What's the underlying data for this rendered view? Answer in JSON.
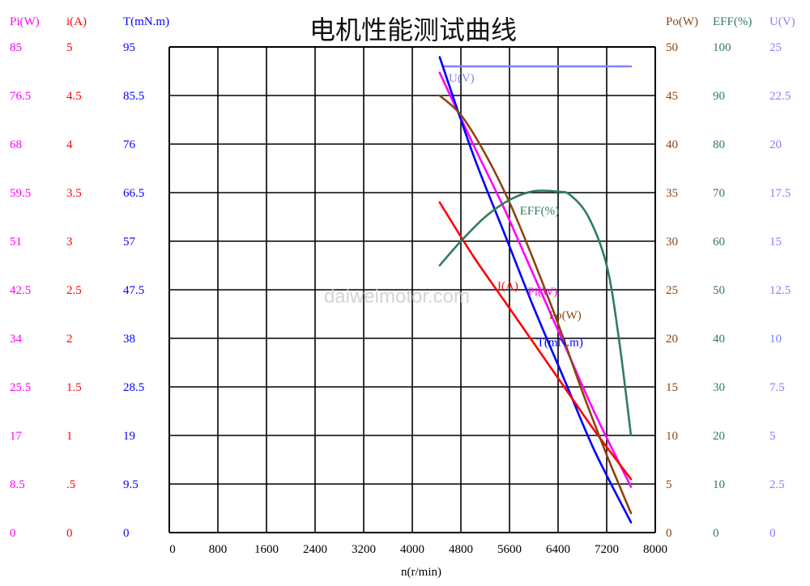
{
  "chart_data": {
    "type": "line",
    "title": "电机性能测试曲线",
    "watermark": "daiweimotor.com",
    "xlabel": "n(r/min)",
    "xlim": [
      0,
      8000
    ],
    "x_ticks": [
      "0",
      "800",
      "1600",
      "2400",
      "3200",
      "4000",
      "4800",
      "5600",
      "6400",
      "7200",
      "8000"
    ],
    "grid": true,
    "left_axes": [
      {
        "key": "pi",
        "label": "Pi(W)",
        "color": "#ff00ff",
        "ticks": [
          "0",
          "8.5",
          "17",
          "25.5",
          "34",
          "42.5",
          "51",
          "59.5",
          "68",
          "76.5",
          "85"
        ]
      },
      {
        "key": "i",
        "label": "i(A)",
        "color": "#ff0000",
        "ticks": [
          "0",
          ".5",
          "1",
          "1.5",
          "2",
          "2.5",
          "3",
          "3.5",
          "4",
          "4.5",
          "5"
        ]
      },
      {
        "key": "t",
        "label": "T(mN.m)",
        "color": "#0000ff",
        "ticks": [
          "0",
          "9.5",
          "19",
          "28.5",
          "38",
          "47.5",
          "57",
          "66.5",
          "76",
          "85.5",
          "95"
        ]
      }
    ],
    "right_axes": [
      {
        "key": "po",
        "label": "Po(W)",
        "color": "#8b4513",
        "ticks": [
          "0",
          "5",
          "10",
          "15",
          "20",
          "25",
          "30",
          "35",
          "40",
          "45",
          "50"
        ]
      },
      {
        "key": "eff",
        "label": "EFF(%)",
        "color": "#2e7d5b",
        "ticks": [
          "0",
          "10",
          "20",
          "30",
          "40",
          "50",
          "60",
          "70",
          "80",
          "90",
          "100"
        ]
      },
      {
        "key": "u",
        "label": "U(V)",
        "color": "#8080ff",
        "ticks": [
          "0",
          "2.5",
          "5",
          "7.5",
          "10",
          "12.5",
          "15",
          "17.5",
          "20",
          "22.5",
          "25"
        ]
      }
    ],
    "series": [
      {
        "name": "U(V)",
        "axis": "u",
        "color": "#8080ff",
        "x": [
          4500,
          7600
        ],
        "y": [
          24,
          24
        ]
      },
      {
        "name": "Pi(W)",
        "axis": "pi",
        "color": "#ff00ff",
        "x": [
          4450,
          5000,
          5500,
          6000,
          6500,
          7000,
          7600
        ],
        "y": [
          80.5,
          68,
          57,
          45,
          33,
          21,
          8
        ]
      },
      {
        "name": "T(mN.m)",
        "axis": "t",
        "color": "#0000ff",
        "x": [
          4450,
          5000,
          5500,
          6000,
          6500,
          7000,
          7600
        ],
        "y": [
          93,
          74,
          59,
          44,
          30,
          16,
          2
        ]
      },
      {
        "name": "I(A)",
        "axis": "i",
        "color": "#ff0000",
        "x": [
          4450,
          5000,
          5500,
          6000,
          6500,
          7000,
          7600
        ],
        "y": [
          3.4,
          2.85,
          2.4,
          1.95,
          1.5,
          1.05,
          0.55
        ]
      },
      {
        "name": "Po(W)",
        "axis": "po",
        "color": "#8b4513",
        "x": [
          4450,
          4800,
          5200,
          5600,
          6000,
          6400,
          6800,
          7200,
          7600
        ],
        "y": [
          45,
          43,
          39,
          34,
          28,
          21.5,
          14.5,
          8,
          2
        ]
      },
      {
        "name": "EFF(%)",
        "axis": "eff",
        "color": "#2e7d5b",
        "x": [
          4450,
          4800,
          5200,
          5600,
          6000,
          6400,
          6600,
          6900,
          7200,
          7400,
          7600
        ],
        "y": [
          55,
          60,
          65,
          68.5,
          70.3,
          70.2,
          69.5,
          65,
          55,
          40,
          20
        ]
      }
    ],
    "annotations": [
      {
        "series": "U(V)",
        "text": "U(V)",
        "x": 4600,
        "y": 23.2,
        "axis": "u"
      },
      {
        "series": "EFF(%)",
        "text": "EFF(%)",
        "x": 5770,
        "y": 65.5,
        "axis": "eff"
      },
      {
        "series": "I(A)",
        "text": "I(A)",
        "x": 5400,
        "y": 2.5,
        "axis": "i"
      },
      {
        "series": "Pi(W)",
        "text": "Pi(W)",
        "x": 5900,
        "y": 41.5,
        "axis": "pi"
      },
      {
        "series": "Po(W)",
        "text": "Po(W)",
        "x": 6250,
        "y": 22,
        "axis": "po"
      },
      {
        "series": "T(mN.m)",
        "text": "T(mN.m)",
        "x": 6050,
        "y": 36.5,
        "axis": "t"
      }
    ]
  }
}
